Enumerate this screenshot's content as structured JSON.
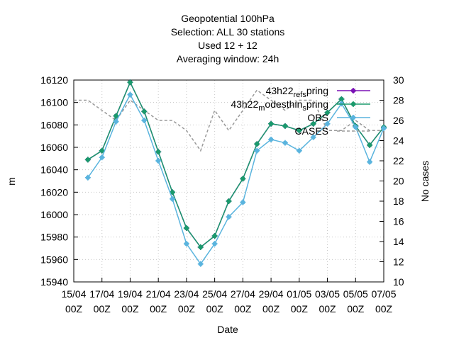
{
  "chart_data": {
    "type": "line",
    "title_lines": [
      "Geopotential 100hPa",
      "Selection: ALL     30 stations",
      "Used  12  + 12",
      "Averaging window: 24h"
    ],
    "xlabel": "Date",
    "ylabel": "m",
    "y2label": "No cases",
    "x_ticks": [
      {
        "top": "15/04",
        "bottom": "00Z"
      },
      {
        "top": "17/04",
        "bottom": "00Z"
      },
      {
        "top": "19/04",
        "bottom": "00Z"
      },
      {
        "top": "21/04",
        "bottom": "00Z"
      },
      {
        "top": "23/04",
        "bottom": "00Z"
      },
      {
        "top": "25/04",
        "bottom": "00Z"
      },
      {
        "top": "27/04",
        "bottom": "00Z"
      },
      {
        "top": "29/04",
        "bottom": "00Z"
      },
      {
        "top": "01/05",
        "bottom": "00Z"
      },
      {
        "top": "03/05",
        "bottom": "00Z"
      },
      {
        "top": "05/05",
        "bottom": "00Z"
      },
      {
        "top": "07/05",
        "bottom": "00Z"
      }
    ],
    "y_ticks": [
      15940,
      15960,
      15980,
      16000,
      16020,
      16040,
      16060,
      16080,
      16100,
      16120
    ],
    "y2_ticks": [
      10,
      12,
      14,
      16,
      18,
      20,
      22,
      24,
      26,
      28,
      30
    ],
    "xlim": [
      0,
      22
    ],
    "ylim": [
      15940,
      16120
    ],
    "y2lim": [
      10,
      30
    ],
    "grid": true,
    "legend_position": "top-right",
    "series": [
      {
        "name": "43h22_ref_spring",
        "color": "#7b12b5",
        "axis": "y1",
        "style": "solid-marker",
        "x": [
          1,
          2,
          3,
          4,
          5,
          6,
          7,
          8,
          9,
          10,
          11,
          12,
          13,
          14,
          15,
          16,
          17,
          18,
          19,
          20,
          21,
          22
        ],
        "values": [
          16049,
          16057,
          16088,
          16118,
          16092,
          16056,
          16020,
          15988,
          15971,
          15981,
          16012,
          16032,
          16063,
          16081,
          16079,
          16075,
          16081,
          16091,
          16103,
          16079,
          16062,
          16078
        ]
      },
      {
        "name": "43h22_modesthin_spring",
        "color": "#1a9a6c",
        "axis": "y1",
        "style": "solid-marker",
        "x": [
          1,
          2,
          3,
          4,
          5,
          6,
          7,
          8,
          9,
          10,
          11,
          12,
          13,
          14,
          15,
          16,
          17,
          18,
          19,
          20,
          21,
          22
        ],
        "values": [
          16049,
          16057,
          16088,
          16118,
          16092,
          16056,
          16020,
          15988,
          15971,
          15981,
          16012,
          16032,
          16063,
          16081,
          16079,
          16075,
          16081,
          16091,
          16103,
          16079,
          16062,
          16078
        ]
      },
      {
        "name": "OBS",
        "color": "#5ab4de",
        "axis": "y1",
        "style": "solid-marker",
        "x": [
          1,
          2,
          3,
          4,
          5,
          6,
          7,
          8,
          9,
          10,
          11,
          12,
          13,
          14,
          15,
          16,
          17,
          18,
          19,
          20,
          21,
          22
        ],
        "values": [
          16033,
          16051,
          16083,
          16107,
          16084,
          16048,
          16014,
          15974,
          15956,
          15974,
          15998,
          16011,
          16057,
          16067,
          16064,
          16057,
          16069,
          16081,
          16099,
          16078,
          16047,
          16077
        ]
      },
      {
        "name": "CASES",
        "color": "#999999",
        "axis": "y2",
        "style": "dashed",
        "x": [
          0,
          1,
          2,
          3,
          4,
          5,
          6,
          7,
          8,
          9,
          10,
          11,
          12,
          13,
          14,
          15,
          16,
          17,
          18,
          19,
          20,
          21,
          22
        ],
        "values": [
          28,
          28,
          27,
          26,
          28,
          27,
          26,
          26,
          25,
          23,
          27,
          25,
          27,
          29,
          28,
          27,
          28,
          28,
          25,
          25,
          26,
          25,
          25
        ]
      }
    ],
    "legend": [
      {
        "base": "43h22",
        "sub1": "ref",
        "mid": "",
        "sub2": "s",
        "tail": "pring"
      },
      {
        "base": "43h22",
        "sub1": "m",
        "mid": "odesthin",
        "sub2": "s",
        "tail": "pring"
      },
      {
        "base": "OBS",
        "sub1": "",
        "mid": "",
        "sub2": "",
        "tail": ""
      },
      {
        "base": "CASES",
        "sub1": "",
        "mid": "",
        "sub2": "",
        "tail": ""
      }
    ]
  }
}
